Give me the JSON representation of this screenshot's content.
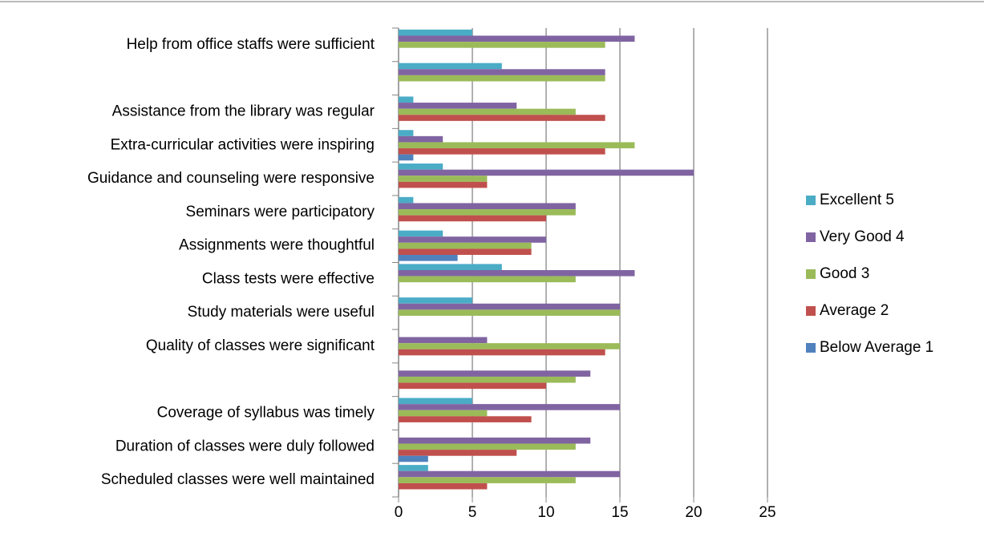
{
  "chart_data": {
    "type": "bar",
    "orientation": "horizontal",
    "categories": [
      "Scheduled classes were well maintained",
      "Duration of classes were duly followed",
      "Coverage of syllabus was timely",
      null,
      "Quality of classes were significant",
      "Study materials were useful",
      "Class tests were effective",
      "Assignments were thoughtful",
      "Seminars were participatory",
      "Guidance and counseling were responsive",
      "Extra-curricular activities were inspiring",
      "Assistance from the library was regular",
      null,
      "Help from office staffs were sufficient"
    ],
    "series": [
      {
        "name": "Excellent 5",
        "color": "#4bacc6",
        "values": [
          2,
          0,
          5,
          0,
          0,
          5,
          7,
          3,
          1,
          3,
          1,
          1,
          7,
          5
        ]
      },
      {
        "name": "Very Good 4",
        "color": "#8064a2",
        "values": [
          15,
          13,
          15,
          13,
          6,
          15,
          16,
          10,
          12,
          20,
          3,
          8,
          14,
          16
        ]
      },
      {
        "name": "Good 3",
        "color": "#9bbb59",
        "values": [
          12,
          12,
          6,
          12,
          15,
          15,
          12,
          9,
          12,
          6,
          16,
          12,
          14,
          14
        ]
      },
      {
        "name": "Average 2",
        "color": "#c0504d",
        "values": [
          6,
          8,
          9,
          10,
          14,
          0,
          0,
          9,
          10,
          6,
          14,
          14,
          0,
          0
        ]
      },
      {
        "name": "Below Average 1",
        "color": "#4f81bd",
        "values": [
          0,
          2,
          0,
          0,
          0,
          0,
          0,
          4,
          0,
          0,
          1,
          0,
          0,
          0
        ]
      }
    ],
    "xlim": [
      0,
      25
    ],
    "xticks": [
      0,
      5,
      10,
      15,
      20,
      25
    ],
    "grid": true,
    "legend": "right"
  }
}
